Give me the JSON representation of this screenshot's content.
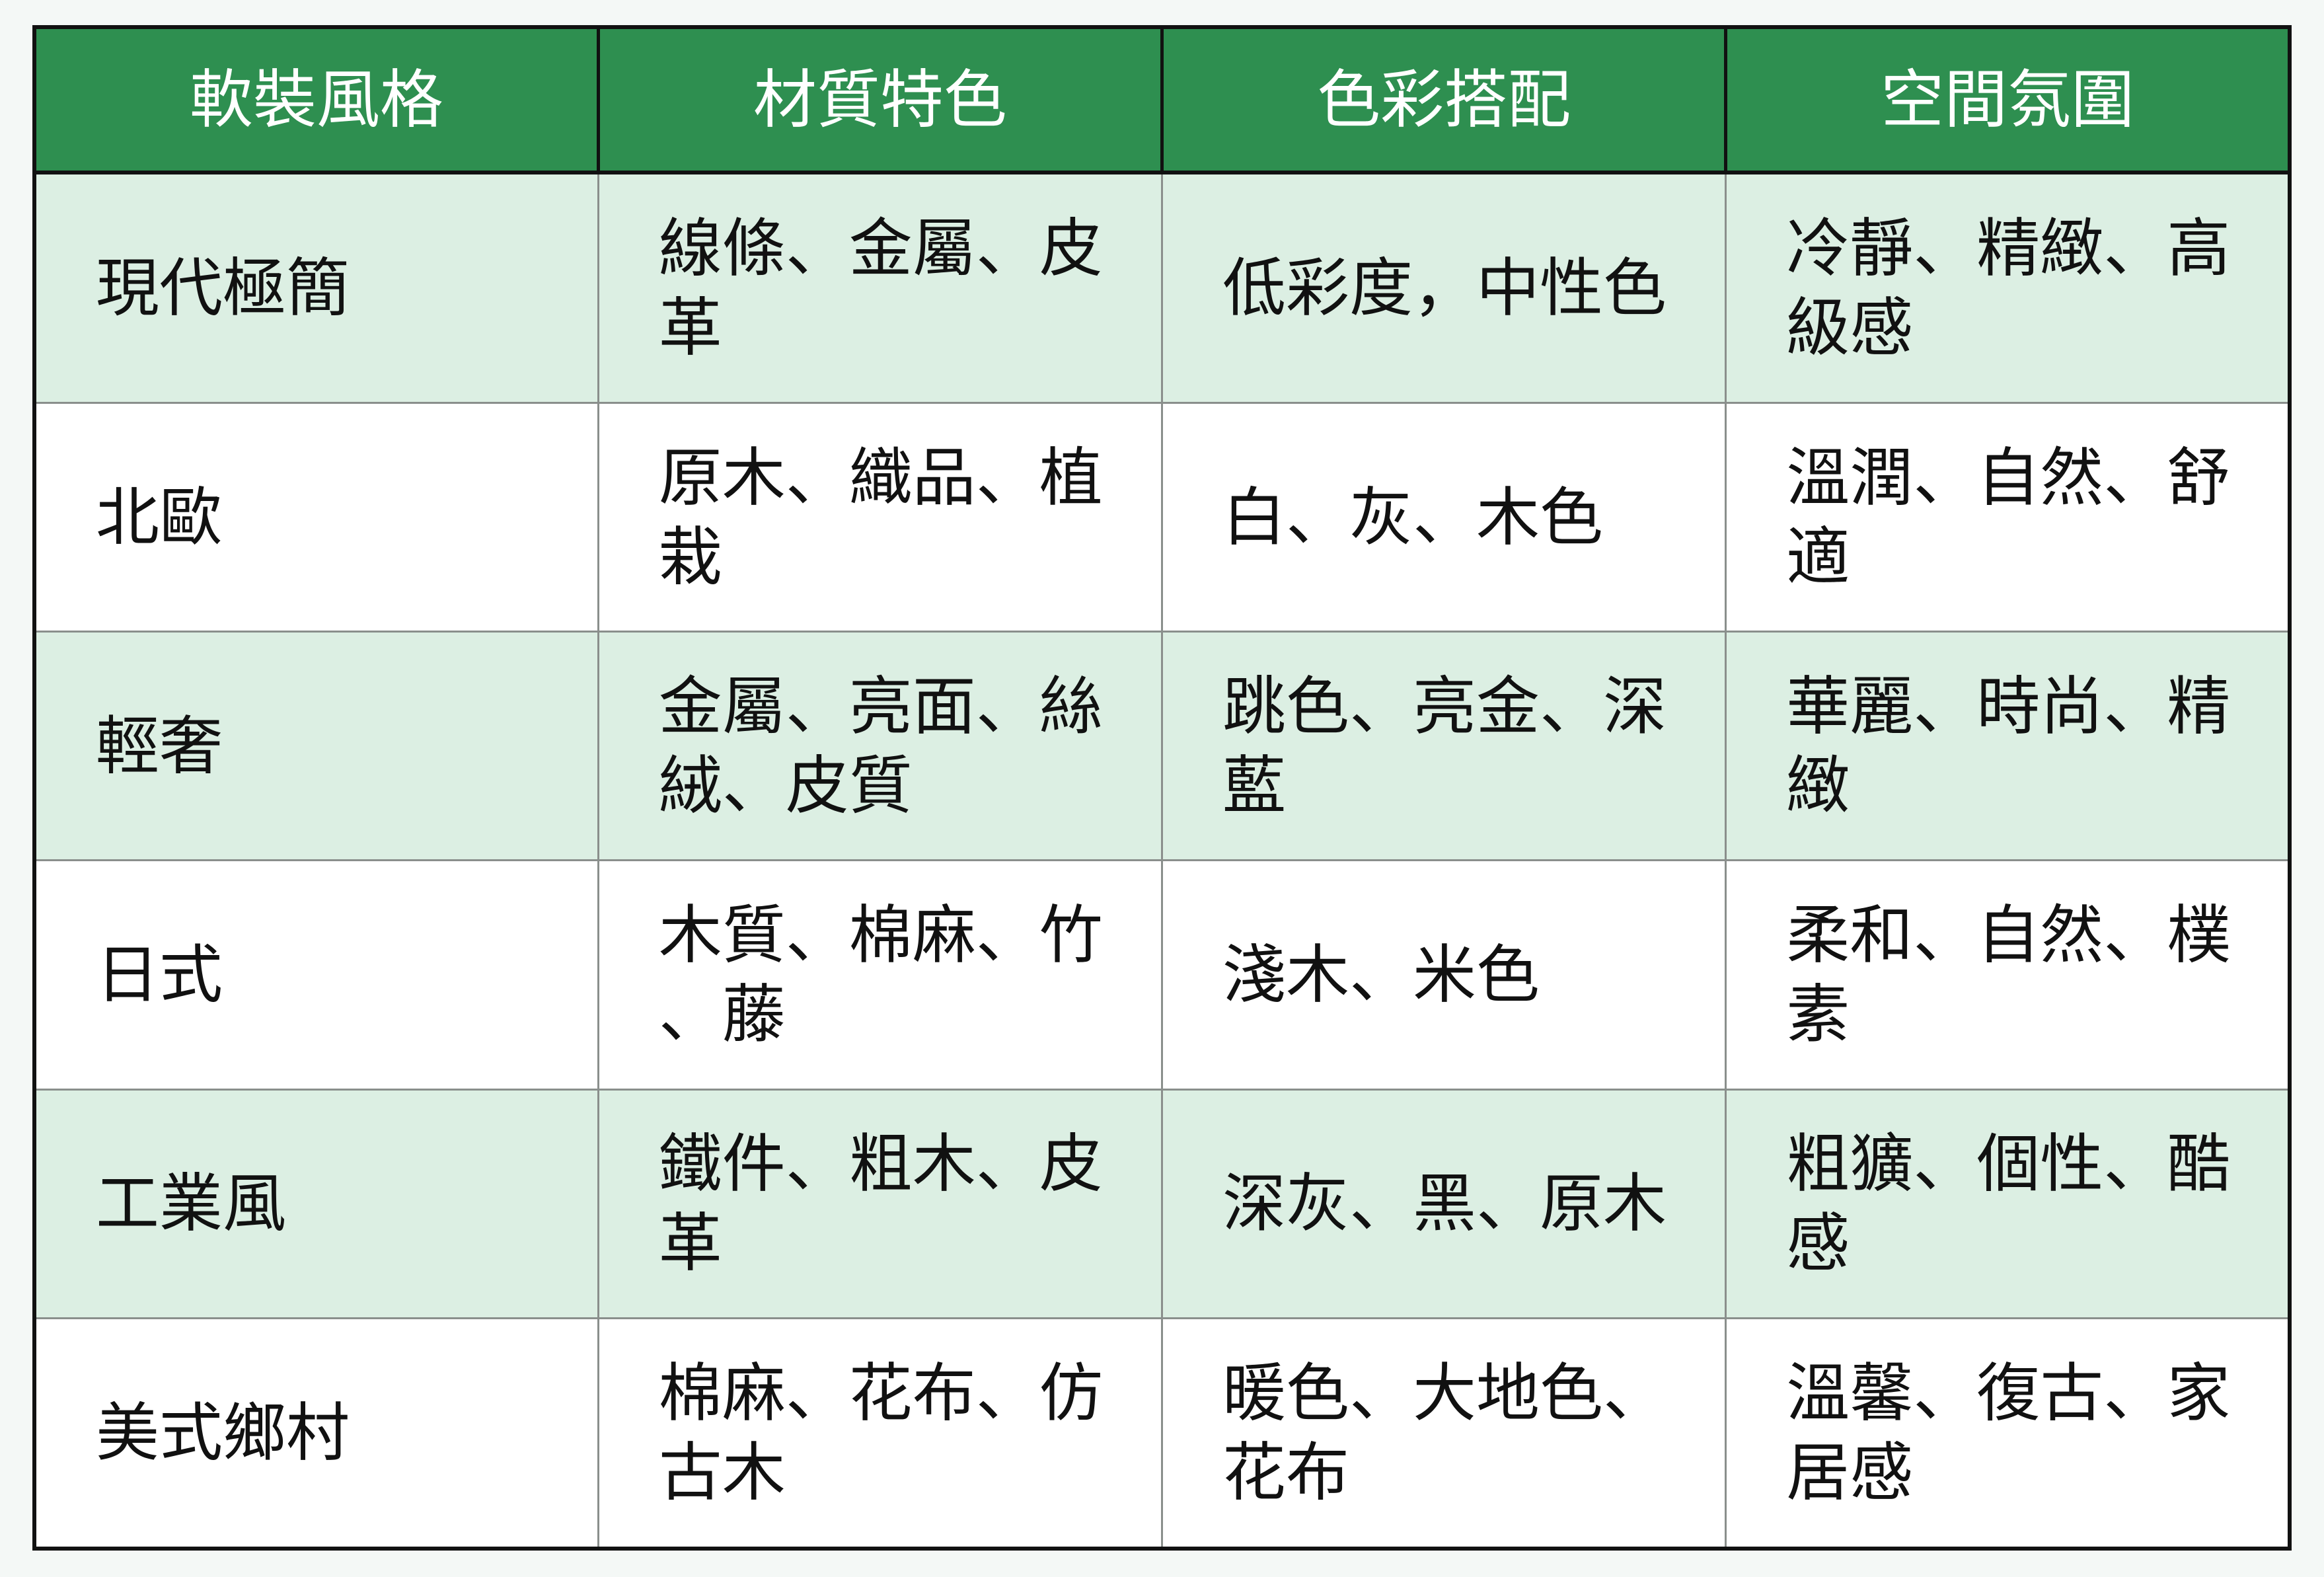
{
  "table": {
    "headers": [
      "軟裝風格",
      "材質特色",
      "色彩搭配",
      "空間氛圍"
    ],
    "rows": [
      [
        "現代極簡",
        "線條、金屬、皮革",
        "低彩度，中性色",
        "冷靜、精緻、高級感"
      ],
      [
        "北歐",
        "原木、織品、植栽",
        "白、灰、木色",
        "溫潤、自然、舒適"
      ],
      [
        "輕奢",
        "金屬、亮面、絲絨、皮質",
        "跳色、亮金、深藍",
        "華麗、時尚、精緻"
      ],
      [
        "日式",
        "木質、棉麻、竹、藤",
        "淺木、米色",
        "柔和、自然、樸素"
      ],
      [
        "工業風",
        "鐵件、粗木、皮革",
        "深灰、黑、原木",
        "粗獷、個性、酷感"
      ],
      [
        "美式鄉村",
        "棉麻、花布、仿古木",
        "暖色、大地色、花布",
        "溫馨、復古、家居感"
      ]
    ]
  },
  "colors": {
    "header": "#2e8f50",
    "row_alt": "#dcefe3",
    "row_plain": "#ffffff",
    "background": "#f4f8f6"
  }
}
